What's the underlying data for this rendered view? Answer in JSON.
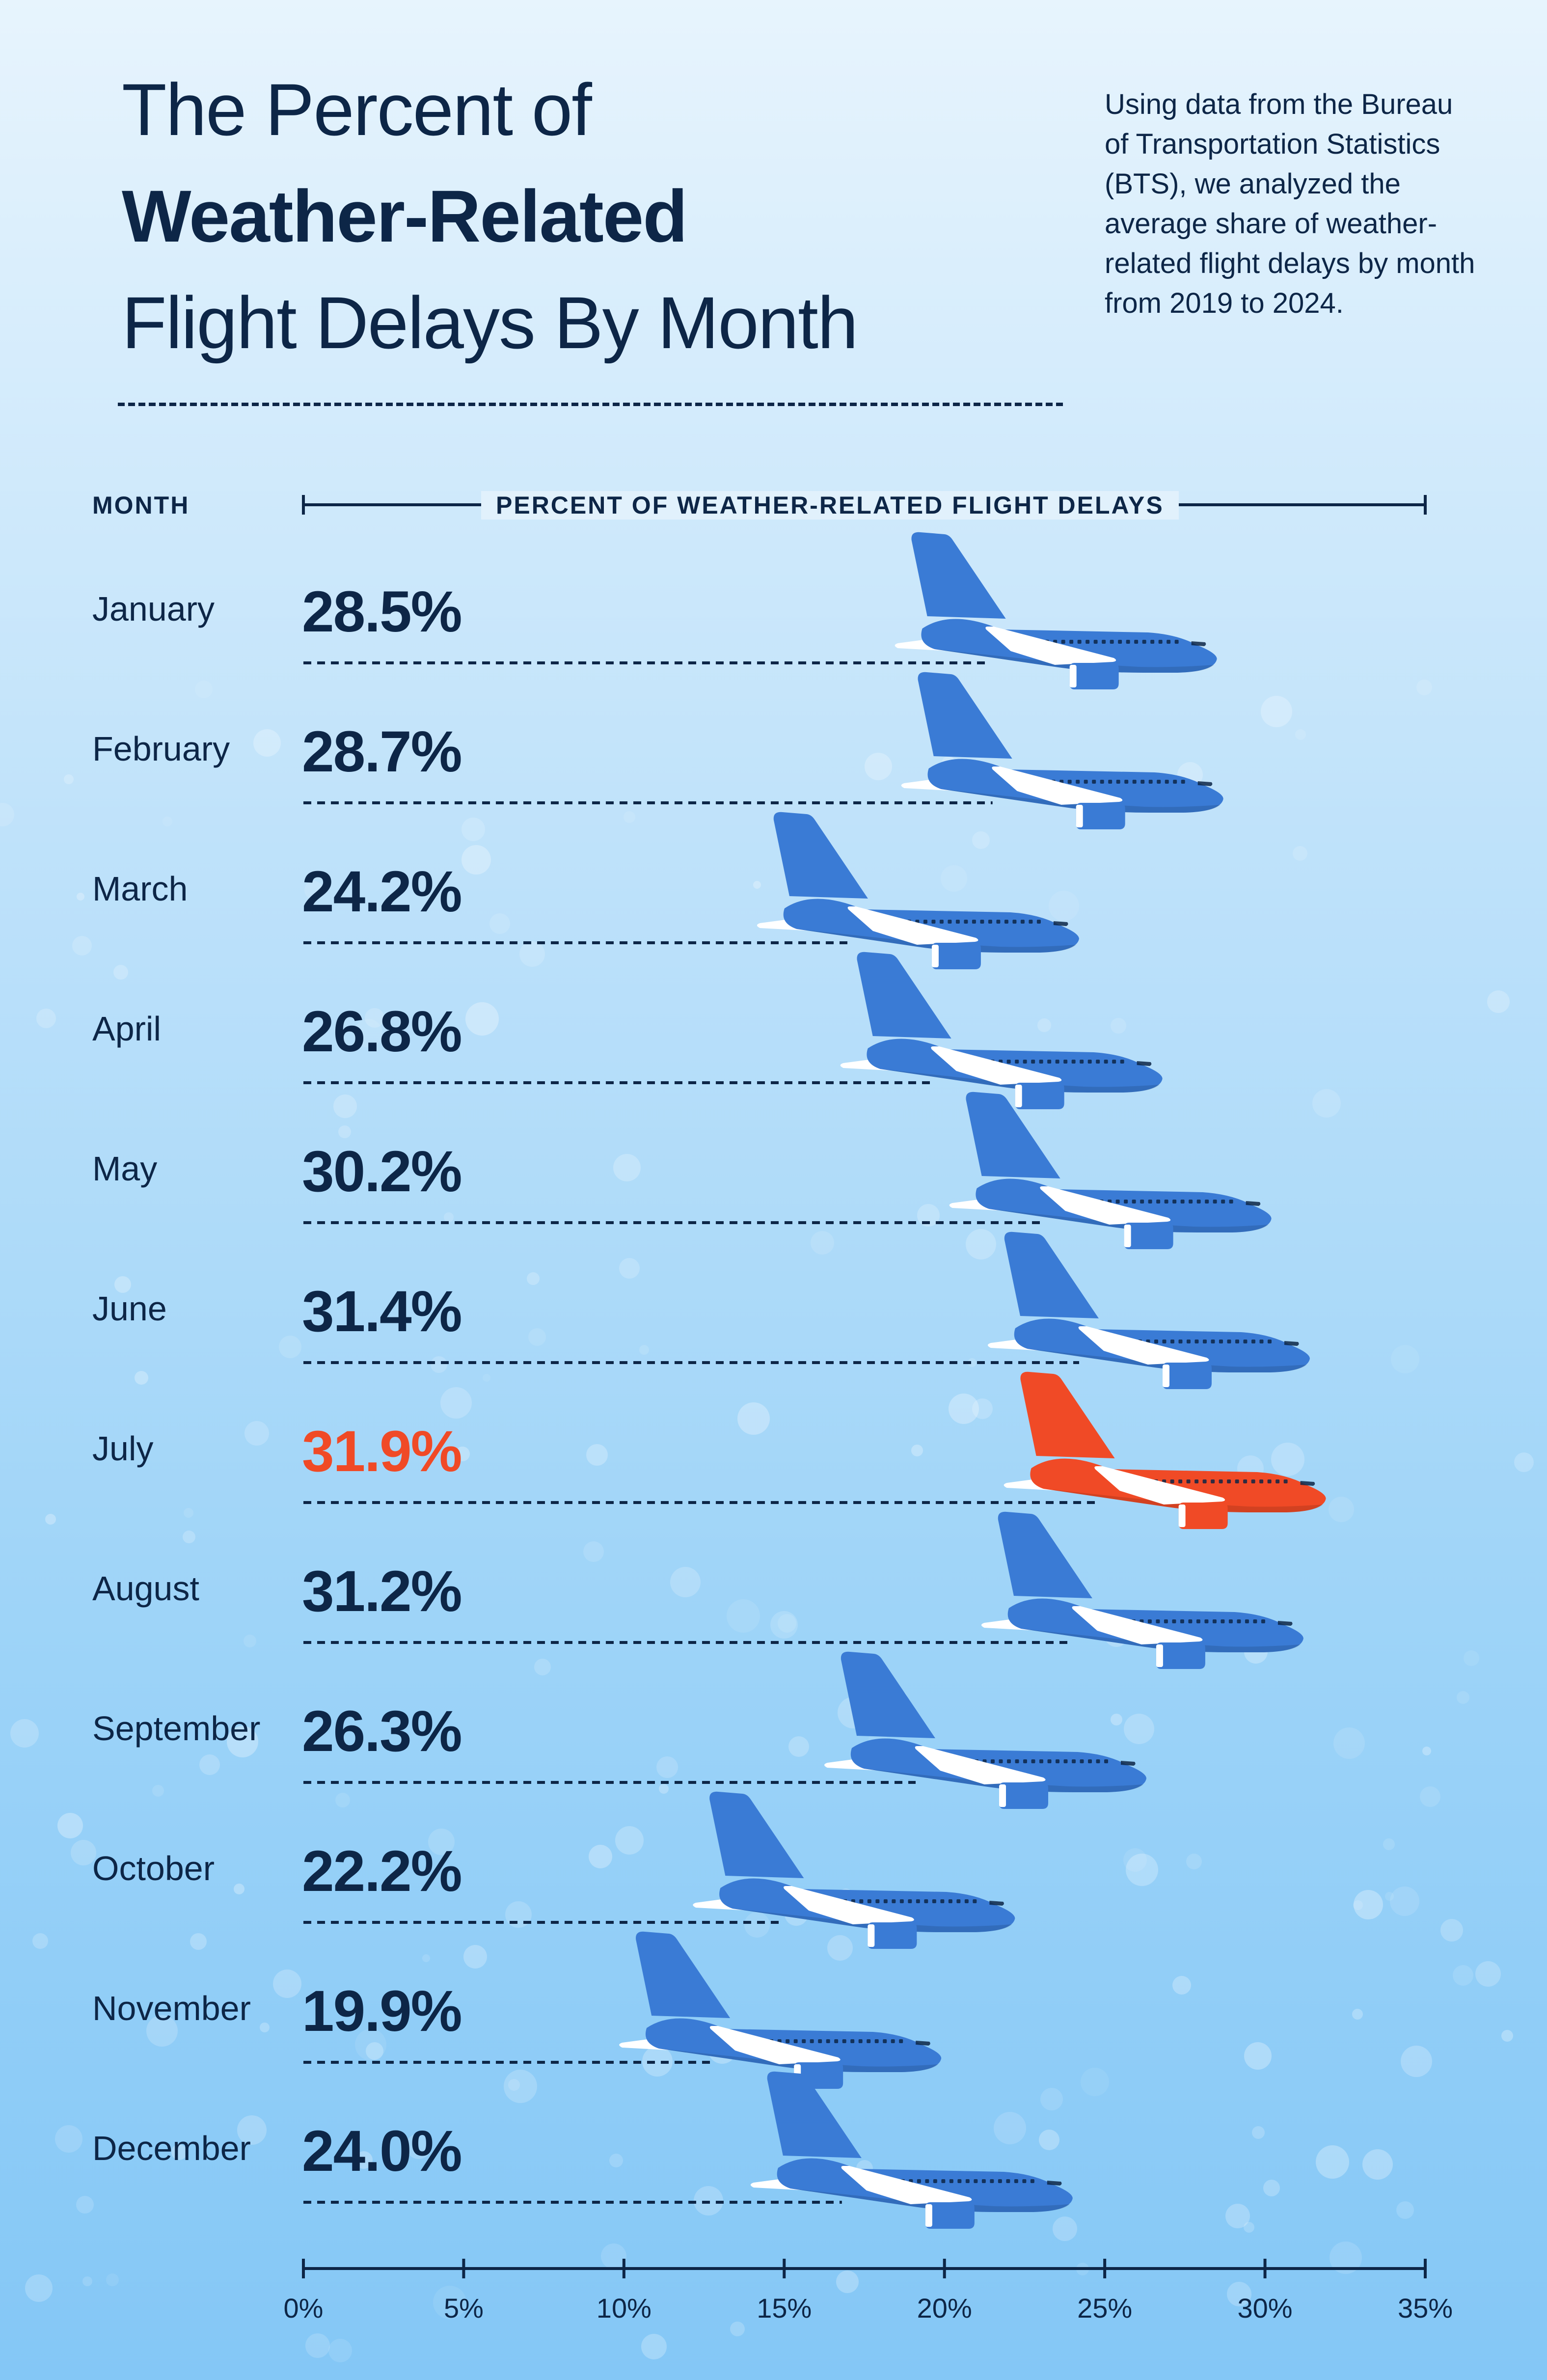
{
  "title": {
    "line1": "The Percent of",
    "line2": "Weather-Related",
    "line3": "Flight Delays By Month"
  },
  "intro": "Using data from the Bureau of Transportation Statistics (BTS), we analyzed the average share of weather-related flight delays by month from 2019 to 2024.",
  "columns": {
    "month": "MONTH",
    "axis_title": "PERCENT OF WEATHER-RELATED FLIGHT DELAYS"
  },
  "colors": {
    "text": "#0d2647",
    "plane": "#3a7bd5",
    "plane_highlight": "#f04a26",
    "wing": "#ffffff"
  },
  "chart_data": {
    "type": "bar",
    "title": "The Percent of Weather-Related Flight Delays By Month",
    "xlabel": "PERCENT OF WEATHER-RELATED FLIGHT DELAYS",
    "ylabel": "MONTH",
    "xlim": [
      0,
      35
    ],
    "grid": false,
    "x_ticks": [
      "0%",
      "5%",
      "10%",
      "15%",
      "20%",
      "25%",
      "30%",
      "35%"
    ],
    "highlight": "July",
    "categories": [
      "January",
      "February",
      "March",
      "April",
      "May",
      "June",
      "July",
      "August",
      "September",
      "October",
      "November",
      "December"
    ],
    "values": [
      28.5,
      28.7,
      24.2,
      26.8,
      30.2,
      31.4,
      31.9,
      31.2,
      26.3,
      22.2,
      19.9,
      24.0
    ],
    "value_labels": [
      "28.5%",
      "28.7%",
      "24.2%",
      "26.8%",
      "30.2%",
      "31.4%",
      "31.9%",
      "31.2%",
      "26.3%",
      "22.2%",
      "19.9%",
      "24.0%"
    ]
  }
}
